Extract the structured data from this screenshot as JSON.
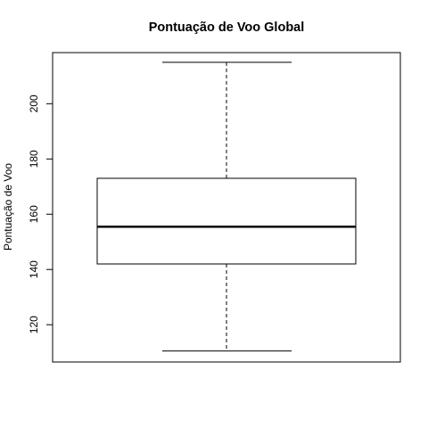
{
  "chart_data": {
    "type": "boxplot",
    "title": "Pontuação de Voo Global",
    "xlabel": "",
    "ylabel": "Pontuação de Voo",
    "ylim": [
      106.5,
      218.5
    ],
    "yticks": [
      120,
      140,
      160,
      180,
      200
    ],
    "grid": false,
    "box": {
      "whisker_low": 110.5,
      "q1": 142,
      "median": 155.5,
      "q3": 173,
      "whisker_high": 215
    }
  }
}
